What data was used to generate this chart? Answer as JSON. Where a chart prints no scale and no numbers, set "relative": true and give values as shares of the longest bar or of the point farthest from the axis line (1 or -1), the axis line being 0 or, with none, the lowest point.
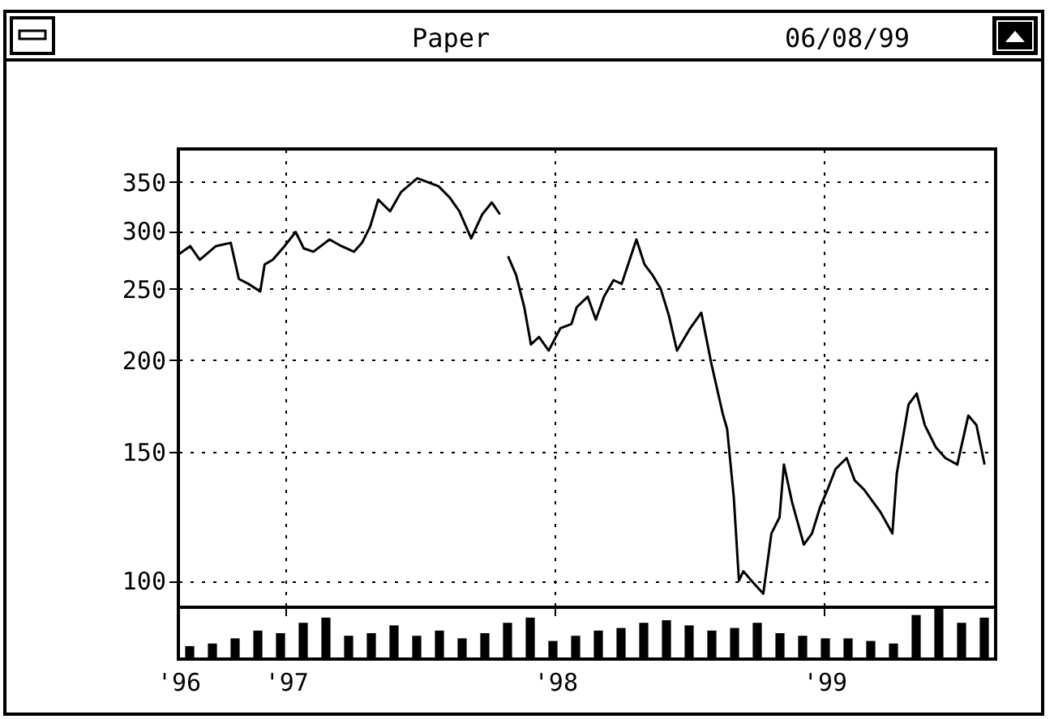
{
  "chart_data": [
    {
      "type": "line",
      "title": "Paper",
      "subtitle": "06/08/99",
      "log": "y",
      "grid": true,
      "xlim": [
        "1996-08-08",
        "1999-08-21"
      ],
      "xticks": [
        {
          "value": "1996-08-08",
          "label": "'96"
        },
        {
          "value": "1997-01-01",
          "label": "'97"
        },
        {
          "value": "1998-01-01",
          "label": "'98"
        },
        {
          "value": "1999-01-01",
          "label": "'99"
        }
      ],
      "ylim": [
        92,
        388
      ],
      "yticks": [
        100,
        150,
        200,
        250,
        300,
        350
      ],
      "x": [
        "1996-08-09",
        "1996-08-24",
        "1996-09-06",
        "1996-09-28",
        "1996-10-18",
        "1996-10-29",
        "1996-11-11",
        "1996-11-27",
        "1996-12-03",
        "1996-12-14",
        "1996-12-30",
        "1997-01-14",
        "1997-01-25",
        "1997-02-07",
        "1997-03-01",
        "1997-03-17",
        "1997-04-03",
        "1997-04-14",
        "1997-04-25",
        "1997-05-06",
        "1997-05-22",
        "1997-06-06",
        "1997-06-28",
        "1997-07-11",
        "1997-07-27",
        "1997-08-11",
        "1997-08-24",
        "1997-09-09",
        "1997-09-24",
        "1997-10-07",
        "1997-10-18",
        "1997-10-25",
        "1997-10-29",
        "1997-11-09",
        "1997-11-20",
        "1997-11-29",
        "1997-12-10",
        "1997-12-23",
        "1998-01-08",
        "1998-01-23",
        "1998-01-30",
        "1998-02-14",
        "1998-02-25",
        "1998-03-08",
        "1998-03-21",
        "1998-04-01",
        "1998-04-21",
        "1998-05-02",
        "1998-05-13",
        "1998-05-24",
        "1998-06-04",
        "1998-06-15",
        "1998-07-03",
        "1998-07-18",
        "1998-07-31",
        "1998-08-16",
        "1998-08-22",
        "1998-08-31",
        "1998-09-07",
        "1998-09-13",
        "1998-09-24",
        "1998-10-10",
        "1998-10-21",
        "1998-11-01",
        "1998-11-07",
        "1998-11-18",
        "1998-12-04",
        "1998-12-15",
        "1998-12-26",
        "1999-01-05",
        "1999-01-16",
        "1999-01-31",
        "1999-02-11",
        "1999-02-24",
        "1999-03-18",
        "1999-04-03",
        "1999-04-09",
        "1999-04-25",
        "1999-05-06",
        "1999-05-17",
        "1999-06-01",
        "1999-06-14",
        "1999-06-30",
        "1999-07-15",
        "1999-07-26",
        "1999-08-06"
      ],
      "series": [
        {
          "color": "#000000",
          "values": [
            279,
            286,
            274,
            286,
            289,
            258,
            254,
            248,
            270,
            274,
            286,
            299,
            284,
            281,
            292,
            286,
            281,
            289,
            304,
            331,
            319,
            339,
            354,
            350,
            345,
            333,
            319,
            293,
            316,
            328,
            316,
            null,
            277,
            261,
            236,
            210,
            215,
            206,
            221,
            224,
            236,
            244,
            227,
            244,
            257,
            254,
            292,
            270,
            261,
            250,
            230,
            206,
            221,
            232,
            199,
            169,
            161,
            130,
            100,
            103,
            100,
            96,
            116,
            122,
            144,
            128,
            112,
            116,
            126,
            133,
            142,
            147,
            137,
            133,
            124,
            116,
            140,
            174,
            180,
            163,
            152,
            147,
            144,
            168,
            163,
            144
          ]
        }
      ]
    },
    {
      "type": "bar",
      "relative": true,
      "categories": [
        null,
        null,
        null,
        null,
        null,
        null,
        null,
        null,
        null,
        null,
        null,
        null,
        null,
        null,
        null,
        null,
        null,
        null,
        null,
        null,
        null,
        null,
        null,
        null,
        null,
        null,
        null,
        null,
        null,
        null,
        null,
        null,
        null,
        null,
        null,
        null
      ],
      "series": [
        {
          "color": "#000000",
          "values": [
            0.25,
            0.3,
            0.4,
            0.55,
            0.5,
            0.7,
            0.8,
            0.45,
            0.5,
            0.65,
            0.45,
            0.55,
            0.4,
            0.5,
            0.7,
            0.8,
            0.35,
            0.45,
            0.55,
            0.6,
            0.7,
            0.75,
            0.65,
            0.55,
            0.6,
            0.7,
            0.5,
            0.45,
            0.4,
            0.4,
            0.35,
            0.3,
            0.85,
            1.0,
            0.7,
            0.8
          ]
        }
      ]
    }
  ]
}
